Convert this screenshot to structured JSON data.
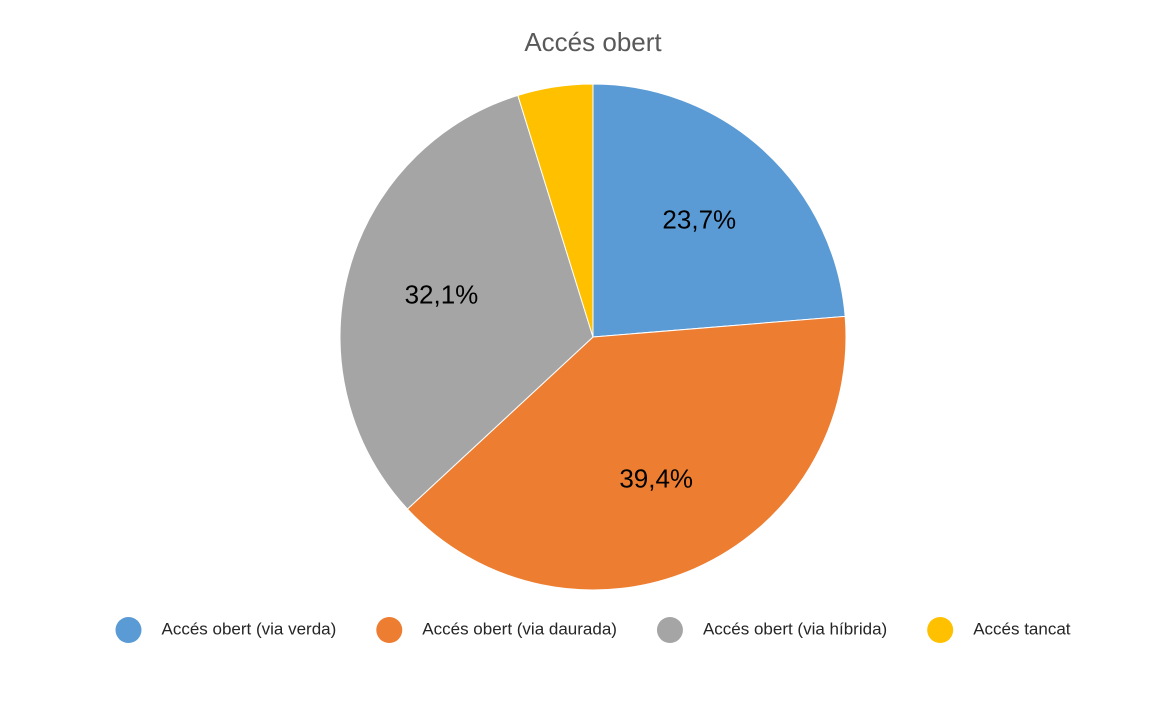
{
  "chart_data": {
    "type": "pie",
    "title": "Accés obert",
    "categories": [
      "Accés obert (via verda)",
      "Accés obert (via daurada)",
      "Accés obert (via híbrida)",
      "Accés tancat"
    ],
    "values": [
      23.7,
      39.4,
      32.1,
      4.8
    ],
    "value_labels": [
      "23,7%",
      "39,4%",
      "32,1%",
      null
    ],
    "colors": [
      "#5b9bd5",
      "#ed7d31",
      "#a5a5a5",
      "#ffc000"
    ],
    "legend": "bottom"
  }
}
